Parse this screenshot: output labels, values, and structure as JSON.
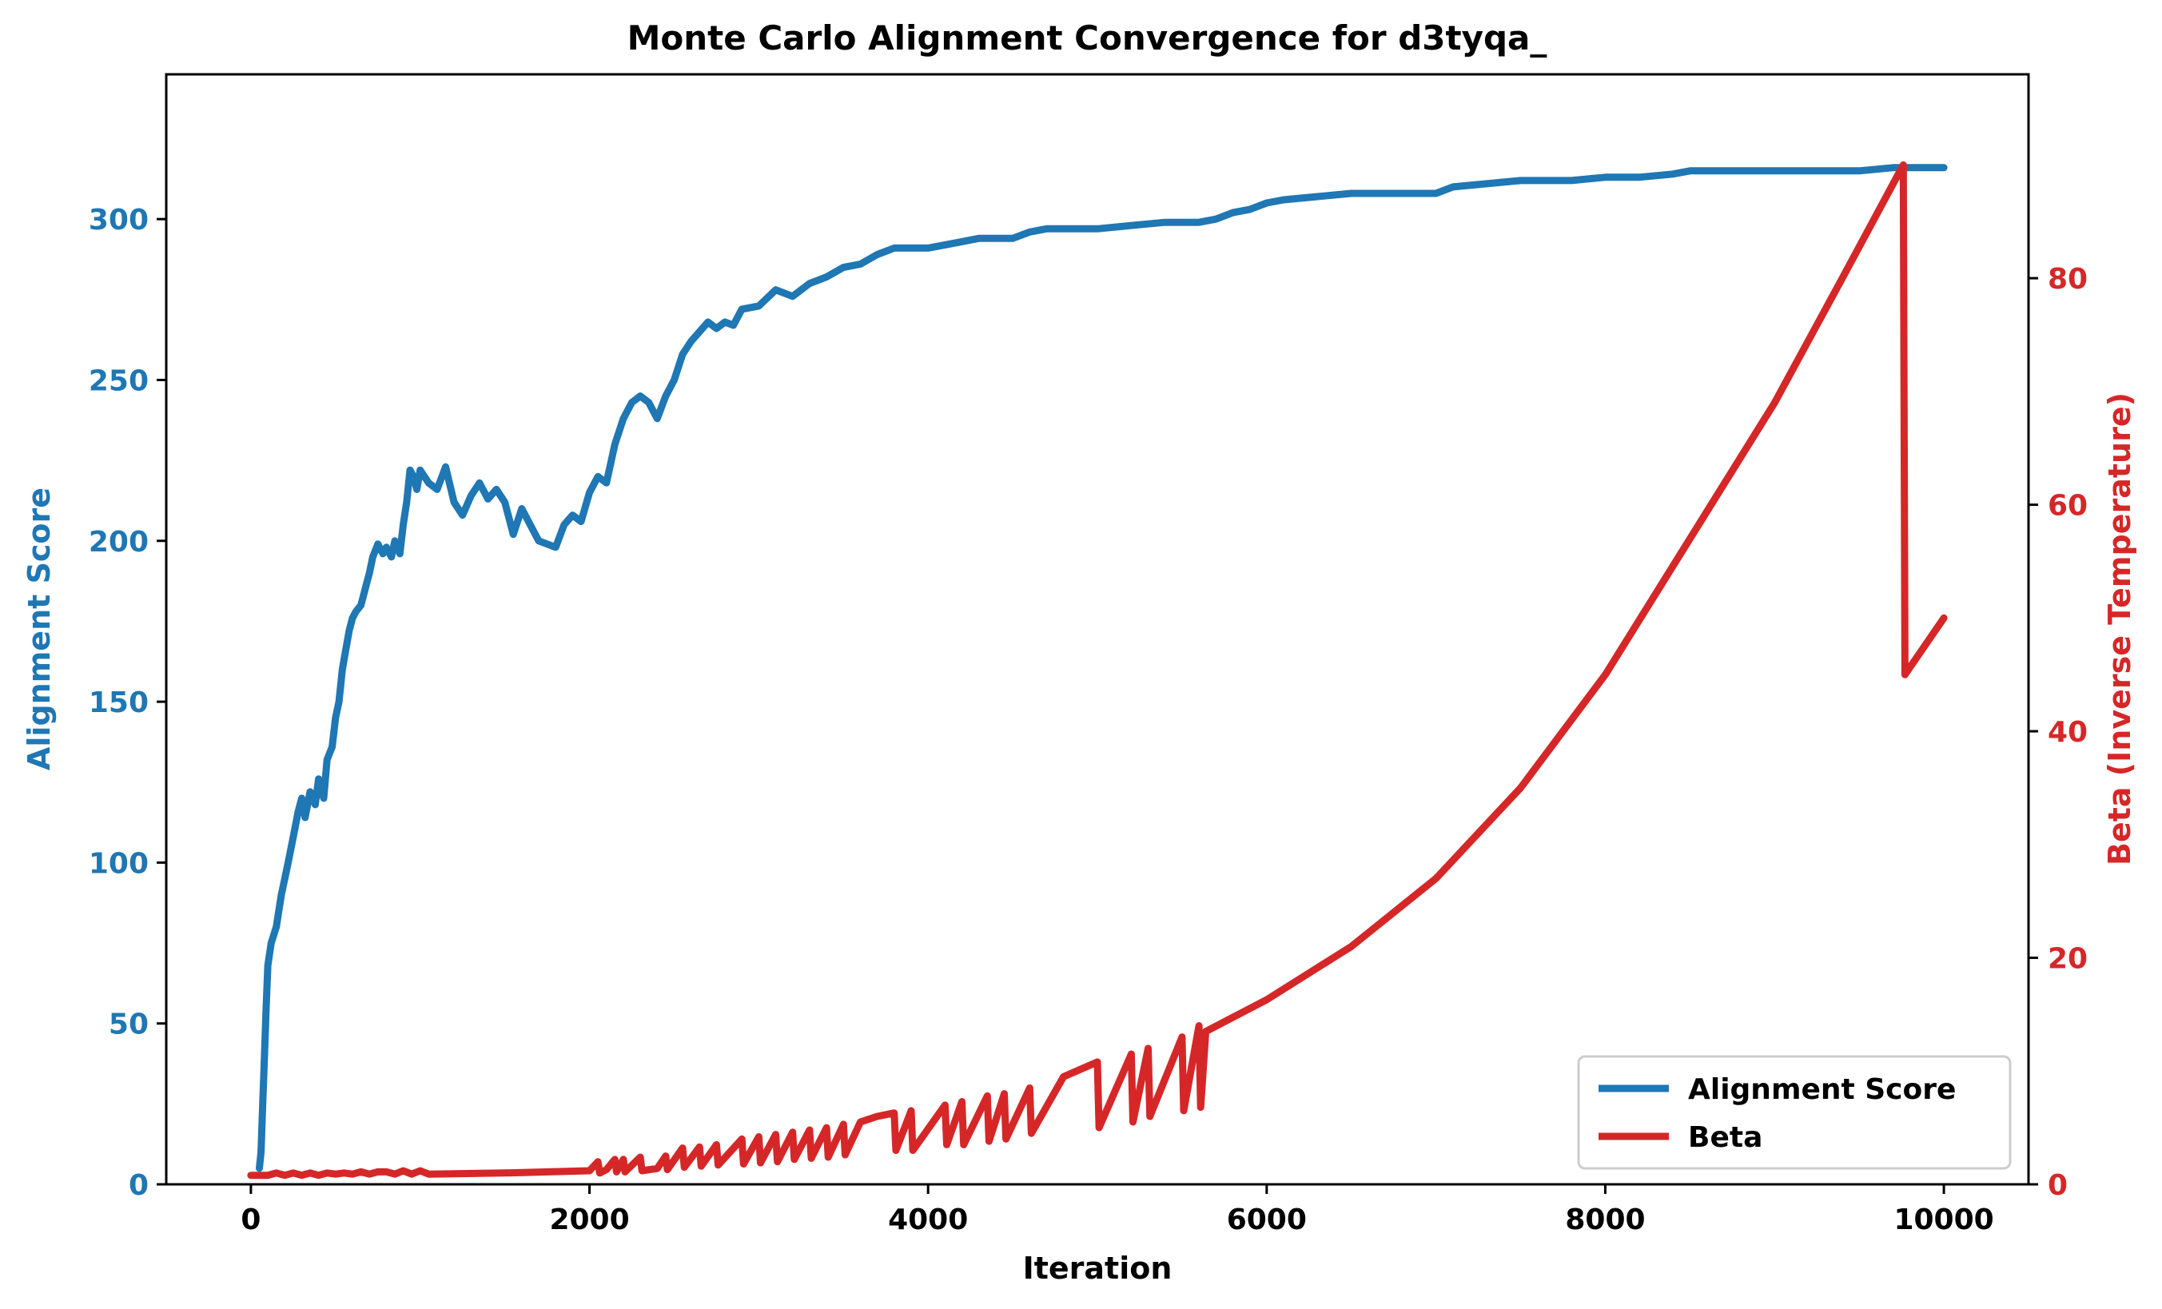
{
  "chart_data": {
    "type": "line",
    "title": "Monte Carlo Alignment Convergence for d3tyqa_",
    "xlabel": "Iteration",
    "ylabel_left": "Alignment Score",
    "ylabel_right": "Beta (Inverse Temperature)",
    "xlim": [
      -500,
      10500
    ],
    "ylim_left": [
      0,
      345
    ],
    "ylim_right": [
      0,
      98
    ],
    "x_ticks": [
      "0",
      "2000",
      "4000",
      "6000",
      "8000",
      "10000"
    ],
    "y_ticks_left": [
      "0",
      "50",
      "100",
      "150",
      "200",
      "250",
      "300"
    ],
    "y_ticks_right": [
      "0",
      "20",
      "40",
      "60",
      "80"
    ],
    "grid": false,
    "legend_position": "lower-right",
    "colors": {
      "score": "#1f77b4",
      "beta": "#d62728",
      "text": "#000000"
    },
    "series": [
      {
        "name": "Alignment Score",
        "axis": "left",
        "color": "#1f77b4",
        "points": [
          [
            50,
            5
          ],
          [
            60,
            10
          ],
          [
            70,
            25
          ],
          [
            80,
            40
          ],
          [
            90,
            55
          ],
          [
            100,
            68
          ],
          [
            120,
            75
          ],
          [
            150,
            80
          ],
          [
            180,
            90
          ],
          [
            200,
            95
          ],
          [
            220,
            100
          ],
          [
            250,
            108
          ],
          [
            280,
            116
          ],
          [
            300,
            120
          ],
          [
            320,
            114
          ],
          [
            350,
            122
          ],
          [
            380,
            118
          ],
          [
            400,
            126
          ],
          [
            430,
            120
          ],
          [
            450,
            132
          ],
          [
            480,
            136
          ],
          [
            500,
            145
          ],
          [
            520,
            150
          ],
          [
            540,
            160
          ],
          [
            560,
            166
          ],
          [
            580,
            172
          ],
          [
            600,
            176
          ],
          [
            620,
            178
          ],
          [
            650,
            180
          ],
          [
            680,
            186
          ],
          [
            700,
            190
          ],
          [
            720,
            195
          ],
          [
            750,
            199
          ],
          [
            780,
            196
          ],
          [
            800,
            198
          ],
          [
            830,
            195
          ],
          [
            850,
            200
          ],
          [
            880,
            196
          ],
          [
            900,
            205
          ],
          [
            920,
            212
          ],
          [
            940,
            222
          ],
          [
            960,
            220
          ],
          [
            980,
            216
          ],
          [
            1000,
            222
          ],
          [
            1050,
            218
          ],
          [
            1100,
            216
          ],
          [
            1150,
            223
          ],
          [
            1200,
            212
          ],
          [
            1250,
            208
          ],
          [
            1300,
            214
          ],
          [
            1350,
            218
          ],
          [
            1400,
            213
          ],
          [
            1450,
            216
          ],
          [
            1500,
            212
          ],
          [
            1550,
            202
          ],
          [
            1600,
            210
          ],
          [
            1650,
            205
          ],
          [
            1700,
            200
          ],
          [
            1750,
            199
          ],
          [
            1800,
            198
          ],
          [
            1850,
            205
          ],
          [
            1900,
            208
          ],
          [
            1950,
            206
          ],
          [
            2000,
            215
          ],
          [
            2050,
            220
          ],
          [
            2100,
            218
          ],
          [
            2150,
            230
          ],
          [
            2200,
            238
          ],
          [
            2250,
            243
          ],
          [
            2300,
            245
          ],
          [
            2350,
            243
          ],
          [
            2400,
            238
          ],
          [
            2450,
            245
          ],
          [
            2500,
            250
          ],
          [
            2550,
            258
          ],
          [
            2600,
            262
          ],
          [
            2650,
            265
          ],
          [
            2700,
            268
          ],
          [
            2750,
            266
          ],
          [
            2800,
            268
          ],
          [
            2850,
            267
          ],
          [
            2900,
            272
          ],
          [
            3000,
            273
          ],
          [
            3100,
            278
          ],
          [
            3200,
            276
          ],
          [
            3300,
            280
          ],
          [
            3400,
            282
          ],
          [
            3500,
            285
          ],
          [
            3600,
            286
          ],
          [
            3700,
            289
          ],
          [
            3800,
            291
          ],
          [
            3900,
            291
          ],
          [
            4000,
            291
          ],
          [
            4100,
            292
          ],
          [
            4200,
            293
          ],
          [
            4300,
            294
          ],
          [
            4400,
            294
          ],
          [
            4500,
            294
          ],
          [
            4600,
            296
          ],
          [
            4700,
            297
          ],
          [
            4800,
            297
          ],
          [
            5000,
            297
          ],
          [
            5200,
            298
          ],
          [
            5400,
            299
          ],
          [
            5600,
            299
          ],
          [
            5700,
            300
          ],
          [
            5800,
            302
          ],
          [
            5900,
            303
          ],
          [
            6000,
            305
          ],
          [
            6100,
            306
          ],
          [
            6300,
            307
          ],
          [
            6500,
            308
          ],
          [
            7000,
            308
          ],
          [
            7100,
            310
          ],
          [
            7300,
            311
          ],
          [
            7500,
            312
          ],
          [
            7800,
            312
          ],
          [
            8000,
            313
          ],
          [
            8200,
            313
          ],
          [
            8400,
            314
          ],
          [
            8500,
            315
          ],
          [
            8800,
            315
          ],
          [
            9000,
            315
          ],
          [
            9500,
            315
          ],
          [
            9700,
            316
          ],
          [
            10000,
            316
          ]
        ]
      },
      {
        "name": "Beta",
        "axis": "right",
        "color": "#d62728",
        "points": [
          [
            0,
            0.8
          ],
          [
            100,
            0.8
          ],
          [
            150,
            1.0
          ],
          [
            200,
            0.8
          ],
          [
            250,
            1.0
          ],
          [
            300,
            0.8
          ],
          [
            350,
            1.0
          ],
          [
            400,
            0.8
          ],
          [
            450,
            1.0
          ],
          [
            500,
            0.9
          ],
          [
            550,
            1.0
          ],
          [
            600,
            0.9
          ],
          [
            650,
            1.1
          ],
          [
            700,
            0.9
          ],
          [
            750,
            1.1
          ],
          [
            800,
            1.1
          ],
          [
            850,
            0.9
          ],
          [
            900,
            1.2
          ],
          [
            950,
            0.9
          ],
          [
            1000,
            1.2
          ],
          [
            1050,
            0.9
          ],
          [
            1500,
            1.0
          ],
          [
            2000,
            1.2
          ],
          [
            2050,
            2.0
          ],
          [
            2060,
            1.0
          ],
          [
            2100,
            1.3
          ],
          [
            2150,
            2.2
          ],
          [
            2160,
            1.1
          ],
          [
            2200,
            2.2
          ],
          [
            2210,
            1.1
          ],
          [
            2300,
            2.4
          ],
          [
            2310,
            1.2
          ],
          [
            2400,
            1.4
          ],
          [
            2450,
            2.5
          ],
          [
            2460,
            1.3
          ],
          [
            2550,
            3.2
          ],
          [
            2560,
            1.5
          ],
          [
            2650,
            3.3
          ],
          [
            2660,
            1.6
          ],
          [
            2750,
            3.5
          ],
          [
            2760,
            1.7
          ],
          [
            2900,
            4.0
          ],
          [
            2910,
            1.8
          ],
          [
            3000,
            4.2
          ],
          [
            3010,
            1.9
          ],
          [
            3100,
            4.4
          ],
          [
            3110,
            2.0
          ],
          [
            3200,
            4.6
          ],
          [
            3210,
            2.2
          ],
          [
            3300,
            4.8
          ],
          [
            3310,
            2.3
          ],
          [
            3400,
            5.0
          ],
          [
            3410,
            2.4
          ],
          [
            3500,
            5.3
          ],
          [
            3510,
            2.6
          ],
          [
            3600,
            5.5
          ],
          [
            3700,
            6.0
          ],
          [
            3800,
            6.3
          ],
          [
            3810,
            3.0
          ],
          [
            3900,
            6.5
          ],
          [
            3910,
            3.0
          ],
          [
            4100,
            7.0
          ],
          [
            4110,
            3.5
          ],
          [
            4200,
            7.3
          ],
          [
            4210,
            3.5
          ],
          [
            4350,
            7.8
          ],
          [
            4360,
            3.8
          ],
          [
            4450,
            8.0
          ],
          [
            4460,
            4.0
          ],
          [
            4600,
            8.5
          ],
          [
            4610,
            4.5
          ],
          [
            4800,
            9.5
          ],
          [
            5000,
            10.8
          ],
          [
            5010,
            5.0
          ],
          [
            5200,
            11.5
          ],
          [
            5210,
            5.5
          ],
          [
            5300,
            12.0
          ],
          [
            5310,
            6.0
          ],
          [
            5500,
            13.0
          ],
          [
            5510,
            6.5
          ],
          [
            5600,
            14.0
          ],
          [
            5610,
            6.8
          ],
          [
            5640,
            13.5
          ],
          [
            6000,
            16.3
          ],
          [
            6500,
            21.0
          ],
          [
            7000,
            27.0
          ],
          [
            7500,
            35.0
          ],
          [
            8000,
            45.0
          ],
          [
            8500,
            57.0
          ],
          [
            9000,
            69.0
          ],
          [
            9400,
            80.0
          ],
          [
            9760,
            90.0
          ],
          [
            9770,
            45.0
          ],
          [
            10000,
            50.0
          ]
        ]
      }
    ]
  }
}
